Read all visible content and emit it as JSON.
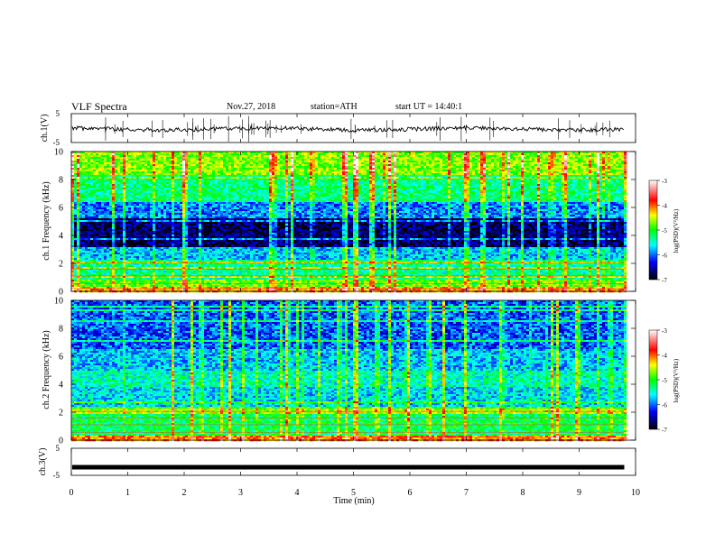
{
  "header": {
    "title": "VLF Spectra",
    "date": "Nov.27, 2018",
    "station": "station=ATH",
    "start_label": "start UT = 14:40:1"
  },
  "colorbar": {
    "label": "log(PSD)(V²/Hz)",
    "ticks": [
      "-3",
      "-4",
      "-5",
      "-6",
      "-7"
    ],
    "colors": [
      "#ffffff",
      "#ff0000",
      "#ffff00",
      "#00ff00",
      "#00ffff",
      "#0000ff",
      "#000000"
    ]
  },
  "chart_data": [
    {
      "type": "line",
      "name": "ch1-waveform",
      "ylabel": "ch.1(V)",
      "yticks": [
        "5",
        "-5"
      ],
      "ylim": [
        -5,
        5
      ],
      "xlim": [
        0,
        10
      ],
      "baseline": -0.3,
      "data_end_min": 9.8
    },
    {
      "type": "heatmap",
      "name": "ch1-spectrogram",
      "ylabel": "ch.1 Frequency (kHz)",
      "yticks": [
        "0",
        "2",
        "4",
        "6",
        "8",
        "10"
      ],
      "ylim": [
        0,
        10
      ],
      "xlim": [
        0,
        10
      ],
      "data_end_min": 9.8,
      "bands": [
        {
          "f": [
            0,
            0.3
          ],
          "level": 0.72
        },
        {
          "f": [
            0.3,
            0.9
          ],
          "level": 0.55
        },
        {
          "f": [
            0.9,
            2.3
          ],
          "level": 0.4
        },
        {
          "f": [
            2.3,
            3.2
          ],
          "level": 0.3
        },
        {
          "f": [
            3.2,
            5.2
          ],
          "level": 0.06
        },
        {
          "f": [
            5.2,
            6.5
          ],
          "level": 0.25
        },
        {
          "f": [
            6.5,
            8.3
          ],
          "level": 0.42
        },
        {
          "f": [
            8.3,
            10
          ],
          "level": 0.58
        }
      ]
    },
    {
      "type": "heatmap",
      "name": "ch2-spectrogram",
      "ylabel": "ch.2 Frequency (kHz)",
      "yticks": [
        "0",
        "2",
        "4",
        "6",
        "8",
        "10"
      ],
      "ylim": [
        0,
        10
      ],
      "xlim": [
        0,
        10
      ],
      "data_end_min": 9.8,
      "bands": [
        {
          "f": [
            0,
            0.3
          ],
          "level": 0.75
        },
        {
          "f": [
            0.3,
            1.9
          ],
          "level": 0.45
        },
        {
          "f": [
            1.9,
            2.2
          ],
          "level": 0.62
        },
        {
          "f": [
            2.2,
            3.8
          ],
          "level": 0.32
        },
        {
          "f": [
            3.8,
            5.0
          ],
          "level": 0.38
        },
        {
          "f": [
            5.0,
            6.5
          ],
          "level": 0.3
        },
        {
          "f": [
            6.5,
            10
          ],
          "level": 0.22
        }
      ]
    },
    {
      "type": "line",
      "name": "ch3-waveform",
      "ylabel": "ch.3(V)",
      "yticks": [
        "5",
        "-5"
      ],
      "ylim": [
        -5,
        5
      ],
      "xlim": [
        0,
        10
      ],
      "xticks": [
        "0",
        "1",
        "2",
        "3",
        "4",
        "5",
        "6",
        "7",
        "8",
        "9",
        "10"
      ],
      "xlabel": "Time (min)",
      "baseline": -2.0,
      "data_end_min": 9.8
    }
  ]
}
